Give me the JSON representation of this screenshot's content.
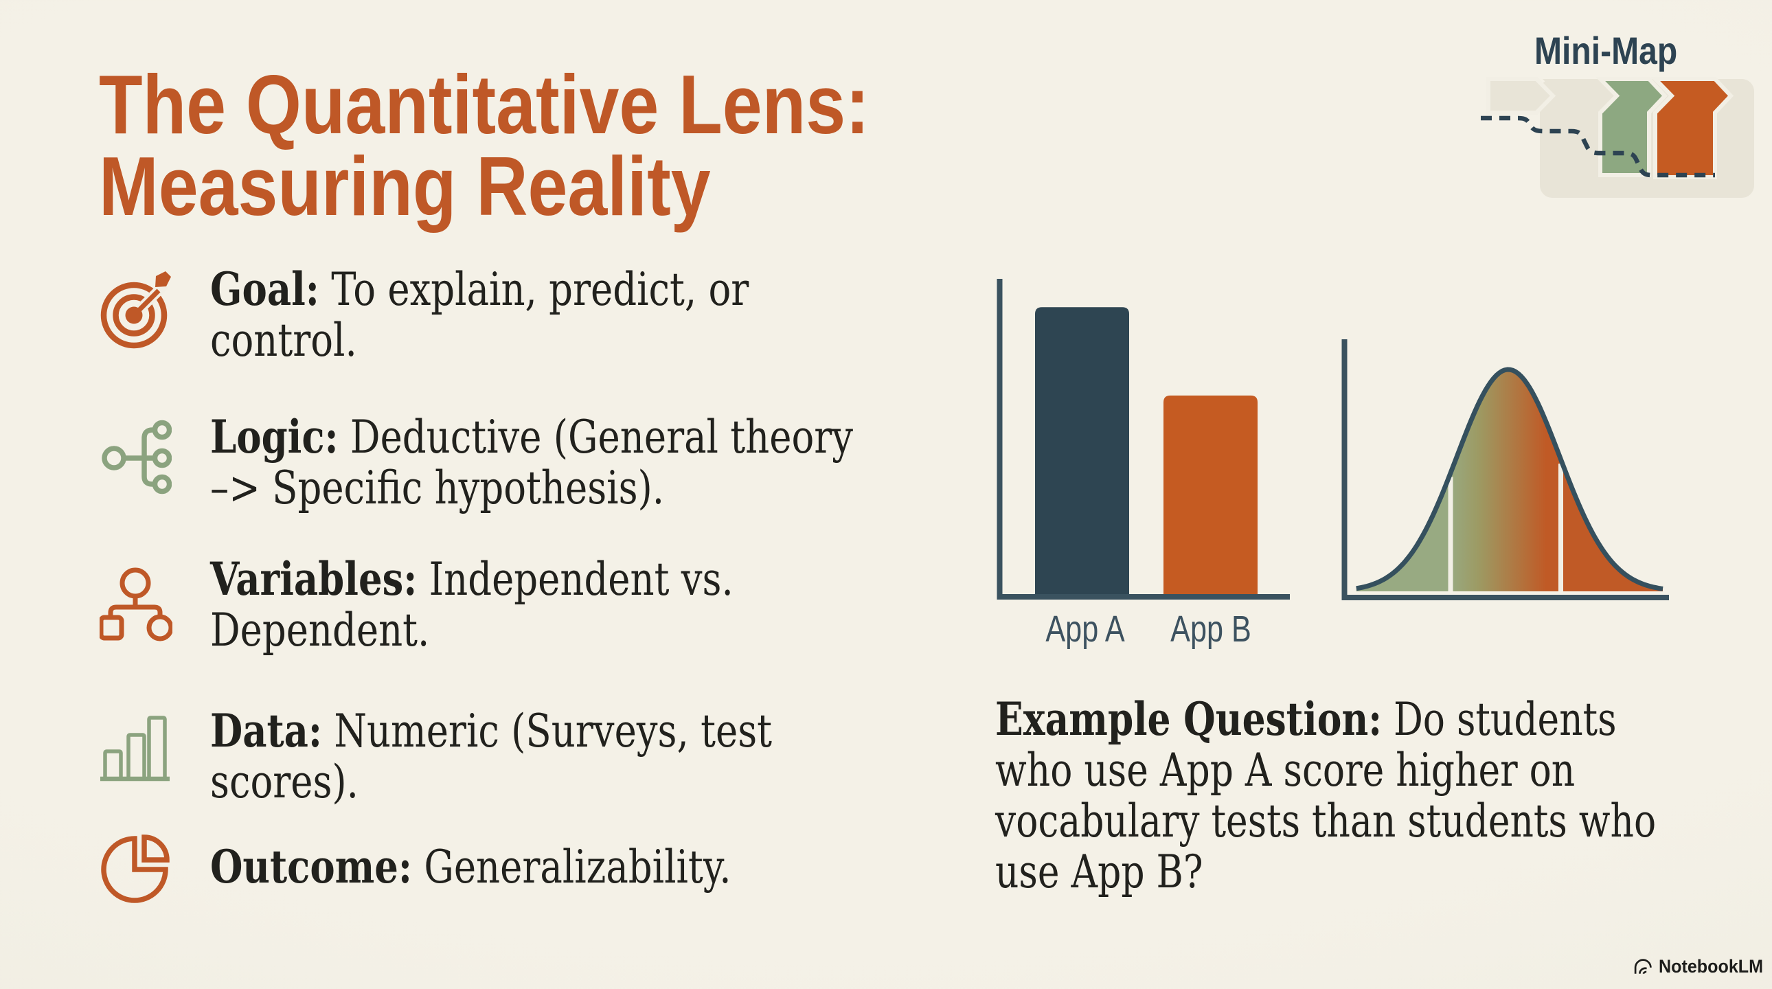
{
  "colors": {
    "background": "#f2efe5",
    "accent_orange": "#bf5827",
    "chart_orange": "#c55b22",
    "accent_green": "#8ba37f",
    "chevron_green": "#8da881",
    "dark_slate": "#2d4352",
    "axis_slate": "#3a525f",
    "bar_navy": "#2e4552",
    "text_dark": "#21211d",
    "muted_beige": "#e8e4d7"
  },
  "title": {
    "line1": "The Quantitative Lens:",
    "line2": "Measuring Reality"
  },
  "minimap": {
    "label": "Mini-Map",
    "steps": [
      "past-step",
      "past-step",
      "current-green",
      "current-orange"
    ]
  },
  "bullets": [
    {
      "icon": "target-icon",
      "bold": "Goal:",
      "lines": [
        " To explain, predict, or",
        "control."
      ]
    },
    {
      "icon": "branch-icon",
      "bold": "Logic:",
      "lines": [
        " Deductive (General theory",
        "–> Specific hypothesis)."
      ]
    },
    {
      "icon": "org-chart-icon",
      "bold": "Variables:",
      "lines": [
        " Independent vs.",
        "Dependent."
      ]
    },
    {
      "icon": "bar-chart-icon",
      "bold": "Data:",
      "lines": [
        " Numeric (Surveys, test",
        "scores)."
      ]
    },
    {
      "icon": "pie-chart-icon",
      "bold": "Outcome:",
      "lines": [
        " Generalizability."
      ]
    }
  ],
  "example": {
    "bold": "Example Question:",
    "lines": [
      " Do students",
      "who use App A score higher on",
      "vocabulary tests than students who",
      "use App B?"
    ]
  },
  "footer": {
    "brand": "NotebookLM"
  },
  "chart_data": [
    {
      "type": "bar",
      "categories": [
        "App A",
        "App B"
      ],
      "values": [
        91,
        63
      ],
      "ylim": [
        0,
        100
      ],
      "bar_colors": [
        "#2e4552",
        "#c55b22"
      ],
      "title": "",
      "xlabel": "",
      "ylabel": "",
      "legend": false,
      "grid": false
    },
    {
      "type": "area",
      "subtype": "normal-distribution-curve",
      "mean": 0,
      "sd": 1,
      "x_range": [
        -2.95,
        3.0
      ],
      "marker_lines_sd": [
        -1.12,
        1.02
      ],
      "gradient": [
        "#98aa82",
        "#c05a26"
      ],
      "outline": "#35505e",
      "title": "",
      "xlabel": "",
      "ylabel": ""
    }
  ]
}
